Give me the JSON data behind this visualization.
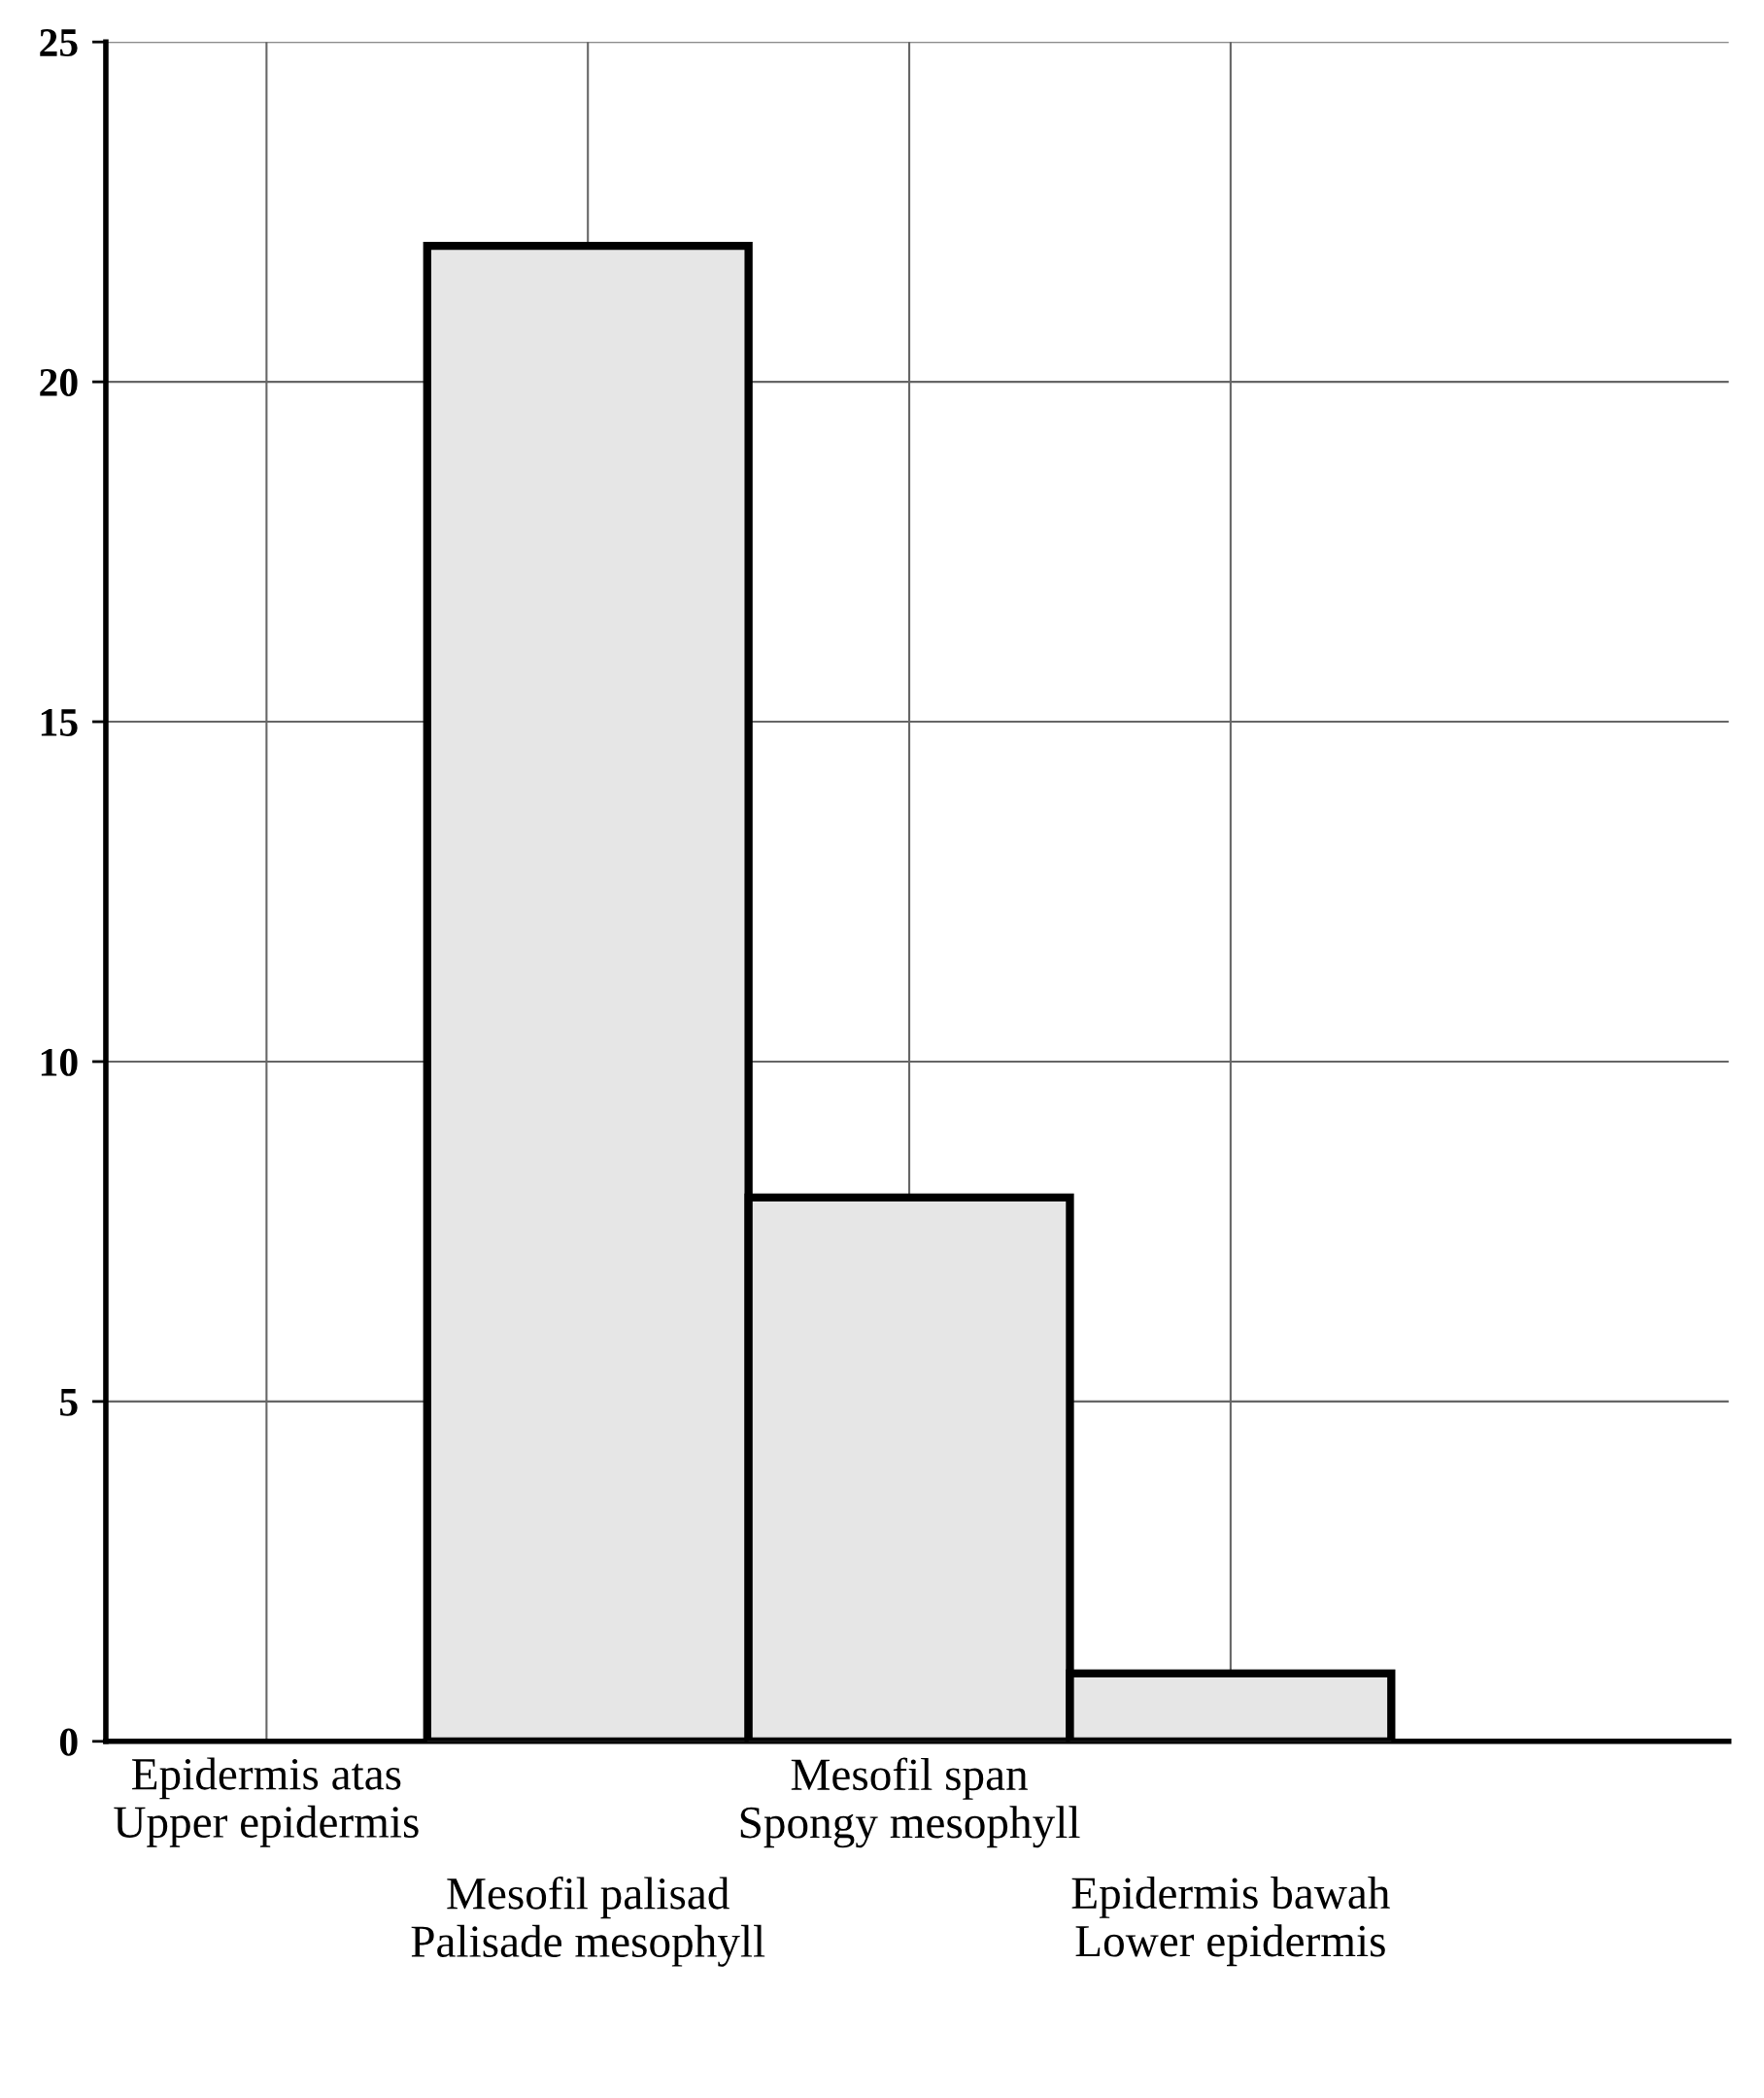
{
  "chart_data": {
    "type": "bar",
    "categories": [
      "Epidermis atas\nUpper epidermis",
      "Mesofil palisad\nPalisade mesophyll",
      "Mesofil span\nSpongy mesophyll",
      "Epidermis bawah\nLower epidermis"
    ],
    "values": [
      0,
      22,
      8,
      1
    ],
    "color": "#e6e6e6",
    "ylim": [
      0,
      25
    ],
    "yticks": [
      0,
      5,
      10,
      15,
      20,
      25
    ],
    "grid": true
  }
}
